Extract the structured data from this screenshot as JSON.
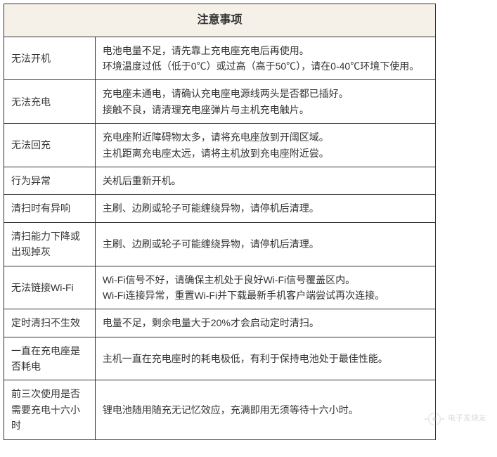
{
  "table": {
    "title": "注意事项",
    "title_bg": "#f5f0e8",
    "border_color": "#333333",
    "font_family": "Microsoft YaHei",
    "title_fontsize": 16,
    "cell_fontsize": 14,
    "label_col_width": 130,
    "desc_col_width": 485,
    "rows": [
      {
        "label": "无法开机",
        "desc": "电池电量不足，请先靠上充电座充电后再使用。\n环境温度过低（低于0℃）或过高（高于50℃），请在0-40℃环境下使用。"
      },
      {
        "label": "无法充电",
        "desc": "充电座未通电，请确认充电座电源线两头是否都已插好。\n接触不良，请清理充电座弹片与主机充电触片。"
      },
      {
        "label": "无法回充",
        "desc": "充电座附近障碍物太多，请将充电座放到开阔区域。\n主机距离充电座太远，请将主机放到充电座附近尝。"
      },
      {
        "label": "行为异常",
        "desc": "关机后重新开机。"
      },
      {
        "label": "清扫时有异响",
        "desc": "主刷、边刷或轮子可能缠绕异物，请停机后清理。"
      },
      {
        "label": "清扫能力下降或出现掉灰",
        "desc": "主刷、边刷或轮子可能缠绕异物，请停机后清理。"
      },
      {
        "label": "无法链接Wi-Fi",
        "desc": "Wi-Fi信号不好，请确保主机处于良好Wi-Fi信号覆盖区内。\nWi-Fi连接异常，重置Wi-Fi并下载最新手机客户端尝试再次连接。"
      },
      {
        "label": "定时清扫不生效",
        "desc": "电量不足，剩余电量大于20%才会启动定时清扫。"
      },
      {
        "label": "一直在充电座是否耗电",
        "desc": "主机一直在充电座时的耗电极低，有利于保持电池处于最佳性能。"
      },
      {
        "label": "前三次使用是否\n需要充电十六小时",
        "desc": "锂电池随用随充无记忆效应，充满即用无须等待十六小时。"
      }
    ]
  },
  "watermark": {
    "text_top": "电子发烧友",
    "text_bottom": ""
  }
}
